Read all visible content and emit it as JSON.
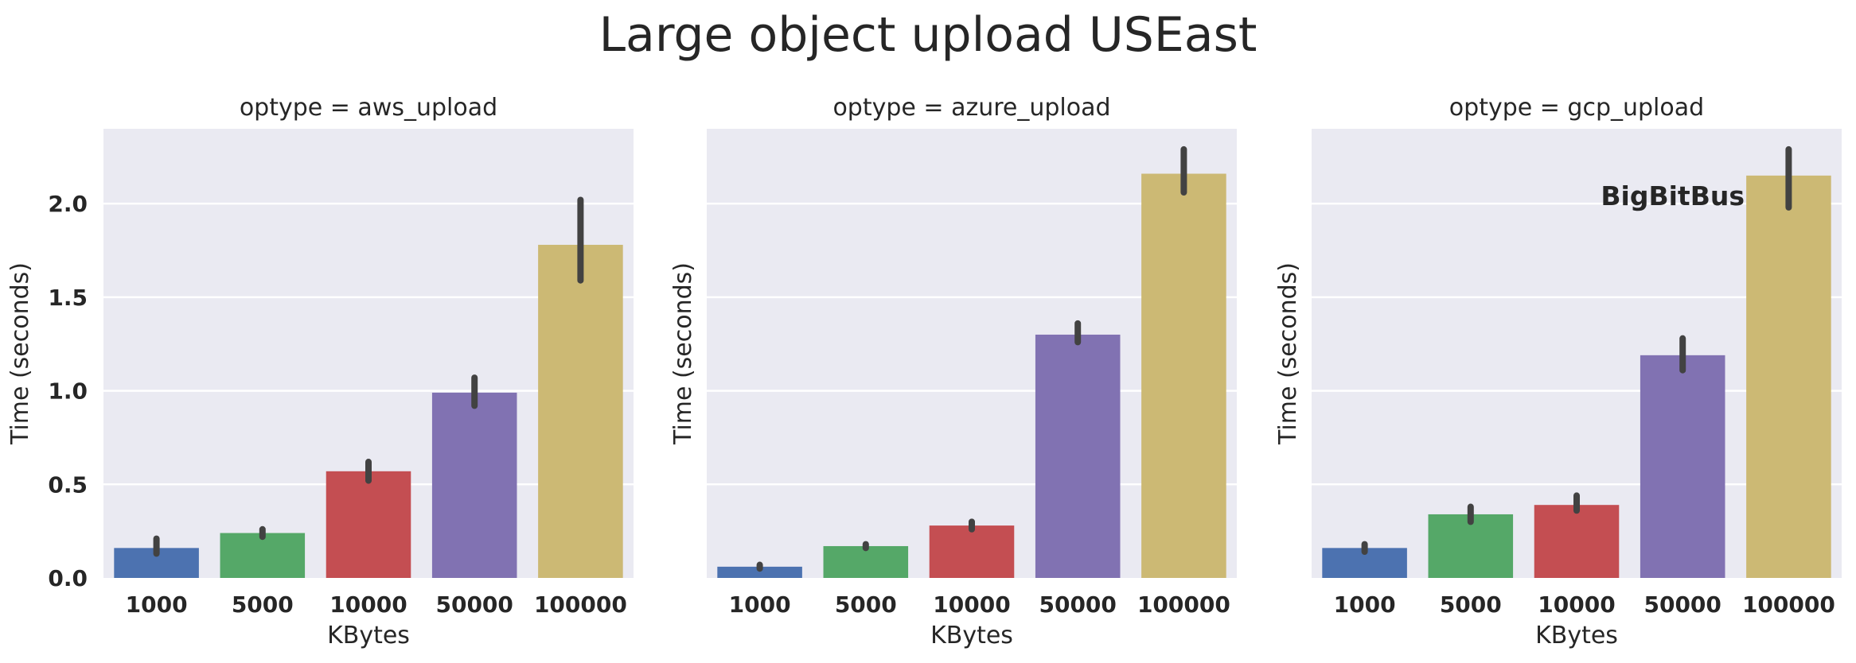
{
  "chart_data": {
    "type": "bar",
    "title": "Large object upload USEast",
    "xlabel": "KBytes",
    "ylabel": "Time (seconds)",
    "categories": [
      "1000",
      "5000",
      "10000",
      "50000",
      "100000"
    ],
    "ylim": [
      0,
      2.4
    ],
    "yticks": [
      "0.0",
      "0.5",
      "1.0",
      "1.5",
      "2.0"
    ],
    "ytick_values": [
      0,
      0.5,
      1.0,
      1.5,
      2.0
    ],
    "shared_y": true,
    "grid": true,
    "colors": [
      "#4c72b0",
      "#55a868",
      "#c44e52",
      "#8172b2",
      "#ccb974"
    ],
    "panels": [
      {
        "title": "optype = aws_upload",
        "values": [
          0.16,
          0.24,
          0.57,
          0.99,
          1.78
        ],
        "err_low": [
          0.13,
          0.22,
          0.52,
          0.92,
          1.59
        ],
        "err_high": [
          0.21,
          0.26,
          0.62,
          1.07,
          2.02
        ]
      },
      {
        "title": "optype = azure_upload",
        "values": [
          0.06,
          0.17,
          0.28,
          1.3,
          2.16
        ],
        "err_low": [
          0.05,
          0.16,
          0.26,
          1.26,
          2.06
        ],
        "err_high": [
          0.07,
          0.18,
          0.3,
          1.36,
          2.29
        ]
      },
      {
        "title": "optype = gcp_upload",
        "values": [
          0.16,
          0.34,
          0.39,
          1.19,
          2.15
        ],
        "err_low": [
          0.14,
          0.3,
          0.36,
          1.11,
          1.98
        ],
        "err_high": [
          0.18,
          0.38,
          0.44,
          1.28,
          2.29
        ]
      }
    ],
    "annotation": "BigBitBus"
  }
}
